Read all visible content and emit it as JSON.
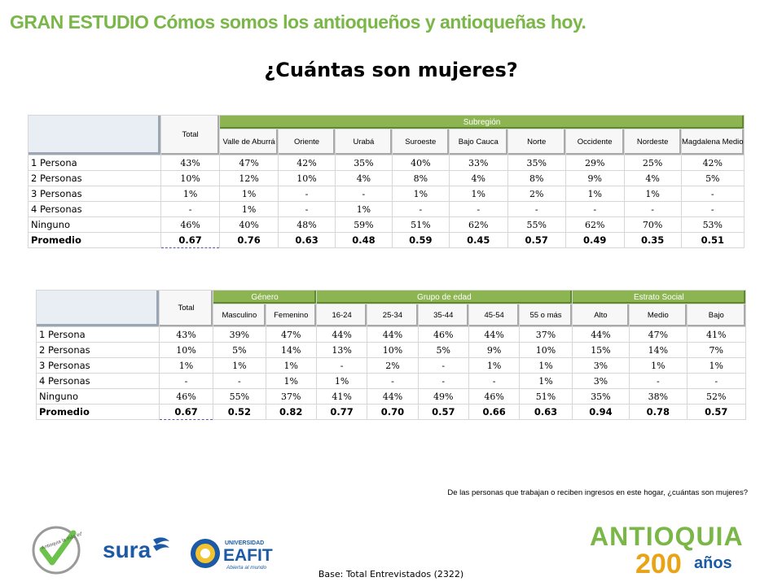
{
  "header": {
    "title": "GRAN ESTUDIO Cómos somos los antioqueños y antioqueñas hoy."
  },
  "main_title": "¿Cuántas son mujeres?",
  "table1": {
    "total_label": "Total",
    "group_label": "Subregión",
    "columns": [
      "Valle de Aburrá",
      "Oriente",
      "Urabá",
      "Suroeste",
      "Bajo Cauca",
      "Norte",
      "Occidente",
      "Nordeste",
      "Magdalena Medio"
    ],
    "rows": [
      {
        "label": "1 Persona",
        "values": [
          "43%",
          "47%",
          "42%",
          "35%",
          "40%",
          "33%",
          "35%",
          "29%",
          "25%",
          "42%"
        ]
      },
      {
        "label": "2 Personas",
        "values": [
          "10%",
          "12%",
          "10%",
          "4%",
          "8%",
          "4%",
          "8%",
          "9%",
          "4%",
          "5%"
        ]
      },
      {
        "label": "3 Personas",
        "values": [
          "1%",
          "1%",
          "-",
          "-",
          "1%",
          "1%",
          "2%",
          "1%",
          "1%",
          "-"
        ]
      },
      {
        "label": "4 Personas",
        "values": [
          "-",
          "1%",
          "-",
          "1%",
          "-",
          "-",
          "-",
          "-",
          "-",
          "-"
        ]
      },
      {
        "label": "Ninguno",
        "values": [
          "46%",
          "40%",
          "48%",
          "59%",
          "51%",
          "62%",
          "55%",
          "62%",
          "70%",
          "53%"
        ]
      },
      {
        "label": "Promedio",
        "values": [
          "0.67",
          "0.76",
          "0.63",
          "0.48",
          "0.59",
          "0.45",
          "0.57",
          "0.49",
          "0.35",
          "0.51"
        ]
      }
    ]
  },
  "table2": {
    "total_label": "Total",
    "groups": {
      "genero": "Género",
      "edad": "Grupo de edad",
      "estrato": "Estrato Social"
    },
    "columns": [
      "Masculino",
      "Femenino",
      "16-24",
      "25-34",
      "35-44",
      "45-54",
      "55 o más",
      "Alto",
      "Medio",
      "Bajo"
    ],
    "rows": [
      {
        "label": "1 Persona",
        "values": [
          "43%",
          "39%",
          "47%",
          "44%",
          "44%",
          "46%",
          "44%",
          "37%",
          "44%",
          "47%",
          "41%"
        ]
      },
      {
        "label": "2 Personas",
        "values": [
          "10%",
          "5%",
          "14%",
          "13%",
          "10%",
          "5%",
          "9%",
          "10%",
          "15%",
          "14%",
          "7%"
        ]
      },
      {
        "label": "3 Personas",
        "values": [
          "1%",
          "1%",
          "1%",
          "-",
          "2%",
          "-",
          "1%",
          "1%",
          "3%",
          "1%",
          "1%"
        ]
      },
      {
        "label": "4 Personas",
        "values": [
          "-",
          "-",
          "1%",
          "1%",
          "-",
          "-",
          "-",
          "1%",
          "3%",
          "-",
          "-"
        ]
      },
      {
        "label": "Ninguno",
        "values": [
          "46%",
          "55%",
          "37%",
          "41%",
          "44%",
          "49%",
          "46%",
          "51%",
          "35%",
          "38%",
          "52%"
        ]
      },
      {
        "label": "Promedio",
        "values": [
          "0.67",
          "0.52",
          "0.82",
          "0.77",
          "0.70",
          "0.57",
          "0.66",
          "0.63",
          "0.94",
          "0.78",
          "0.57"
        ]
      }
    ]
  },
  "question": "De las personas que trabajan o reciben ingresos en este hogar, ¿cuántas son mujeres?",
  "base": "Base: Total Entrevistados  (2322)",
  "logos": {
    "check": "Antioquia la más educada",
    "sura": "sura",
    "eafit_top": "UNIVERSIDAD",
    "eafit_main": "EAFIT",
    "eafit_tag": "Abierta al mundo",
    "antioquia_word": "ANTIOQUIA",
    "antioquia_num": "200",
    "antioquia_suffix": "años"
  },
  "colors": {
    "header_green": "#7ab648",
    "group_green": "#8cb552",
    "brand_blue": "#1b5aa6"
  }
}
